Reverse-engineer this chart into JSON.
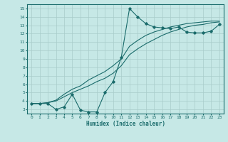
{
  "xlabel": "Humidex (Indice chaleur)",
  "ylabel": "",
  "xlim": [
    -0.5,
    23.5
  ],
  "ylim": [
    2.5,
    15.5
  ],
  "xticks": [
    0,
    1,
    2,
    3,
    4,
    5,
    6,
    7,
    8,
    9,
    10,
    11,
    12,
    13,
    14,
    15,
    16,
    17,
    18,
    19,
    20,
    21,
    22,
    23
  ],
  "yticks": [
    3,
    4,
    5,
    6,
    7,
    8,
    9,
    10,
    11,
    12,
    13,
    14,
    15
  ],
  "bg_color": "#c6e8e6",
  "line_color": "#1a6b6b",
  "grid_color": "#a8ccca",
  "line1_x": [
    0,
    1,
    2,
    3,
    4,
    5,
    6,
    7,
    8,
    9,
    10,
    11,
    12,
    13,
    14,
    15,
    16,
    17,
    18,
    19,
    20,
    21,
    22,
    23
  ],
  "line1_y": [
    3.7,
    3.7,
    3.7,
    3.0,
    3.3,
    4.8,
    2.9,
    2.7,
    2.7,
    5.0,
    6.3,
    9.2,
    15.0,
    14.0,
    13.2,
    12.8,
    12.7,
    12.6,
    12.8,
    12.2,
    12.1,
    12.1,
    12.3,
    13.1
  ],
  "line2_x": [
    0,
    1,
    2,
    3,
    4,
    5,
    6,
    7,
    8,
    9,
    10,
    11,
    12,
    13,
    14,
    15,
    16,
    17,
    18,
    19,
    20,
    21,
    22,
    23
  ],
  "line2_y": [
    3.7,
    3.7,
    3.8,
    4.0,
    4.5,
    5.0,
    5.4,
    5.8,
    6.3,
    6.7,
    7.3,
    8.2,
    9.5,
    10.2,
    10.8,
    11.3,
    11.8,
    12.2,
    12.5,
    12.8,
    13.0,
    13.1,
    13.3,
    13.4
  ],
  "line3_x": [
    0,
    1,
    2,
    3,
    4,
    5,
    6,
    7,
    8,
    9,
    10,
    11,
    12,
    13,
    14,
    15,
    16,
    17,
    18,
    19,
    20,
    21,
    22,
    23
  ],
  "line3_y": [
    3.7,
    3.7,
    3.8,
    4.1,
    4.8,
    5.4,
    5.8,
    6.5,
    7.0,
    7.5,
    8.2,
    9.0,
    10.5,
    11.2,
    11.8,
    12.2,
    12.5,
    12.8,
    13.0,
    13.2,
    13.3,
    13.4,
    13.5,
    13.5
  ]
}
